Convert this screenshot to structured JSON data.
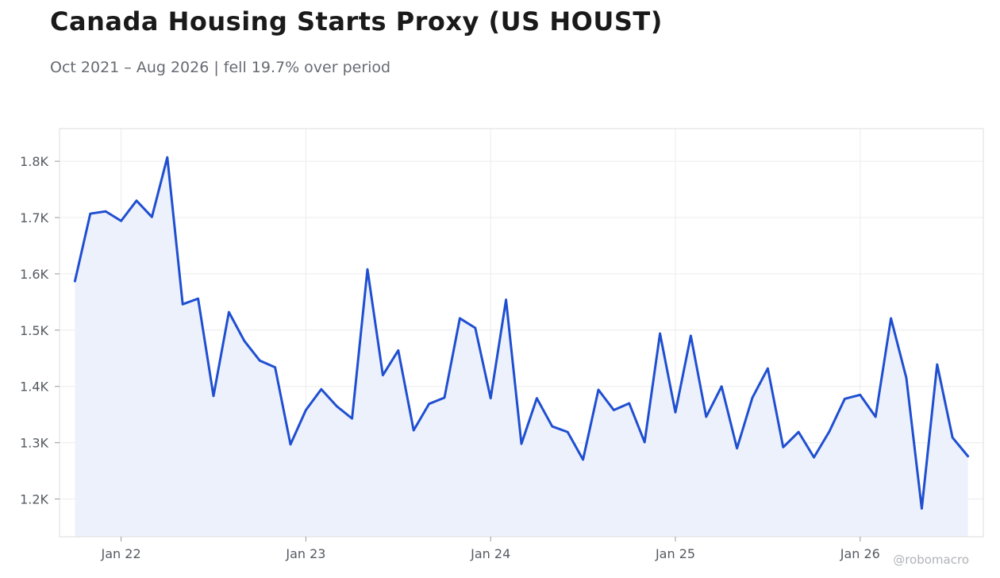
{
  "header": {
    "title": "Canada Housing Starts Proxy (US HOUST)",
    "subtitle": "Oct 2021 – Aug 2026 | fell 19.7% over period"
  },
  "watermark": "@robomacro",
  "colors": {
    "line": "#1f4fd1",
    "fill": "#edf1fb",
    "grid": "#ececec",
    "frame": "#dddddd"
  },
  "chart_data": {
    "type": "area",
    "x_start": "2021-10",
    "x_end": "2026-08",
    "xlim": [
      "2021-09",
      "2026-09"
    ],
    "ylim": [
      1133,
      1858
    ],
    "grid": true,
    "x_ticks": [
      {
        "date": "2022-01",
        "label": "Jan 22"
      },
      {
        "date": "2023-01",
        "label": "Jan 23"
      },
      {
        "date": "2024-01",
        "label": "Jan 24"
      },
      {
        "date": "2025-01",
        "label": "Jan 25"
      },
      {
        "date": "2026-01",
        "label": "Jan 26"
      }
    ],
    "y_ticks": [
      {
        "value": 1200,
        "label": "1.2K"
      },
      {
        "value": 1300,
        "label": "1.3K"
      },
      {
        "value": 1400,
        "label": "1.4K"
      },
      {
        "value": 1500,
        "label": "1.5K"
      },
      {
        "value": 1600,
        "label": "1.6K"
      },
      {
        "value": 1700,
        "label": "1.7K"
      },
      {
        "value": 1800,
        "label": "1.8K"
      }
    ],
    "values": [
      1587,
      1707,
      1711,
      1694,
      1730,
      1701,
      1807,
      1546,
      1556,
      1383,
      1532,
      1481,
      1446,
      1434,
      1297,
      1358,
      1395,
      1365,
      1343,
      1608,
      1420,
      1464,
      1322,
      1369,
      1380,
      1521,
      1504,
      1379,
      1554,
      1298,
      1379,
      1329,
      1319,
      1270,
      1394,
      1358,
      1370,
      1301,
      1494,
      1354,
      1490,
      1346,
      1400,
      1290,
      1380,
      1432,
      1292,
      1319,
      1274,
      1320,
      1378,
      1385,
      1346,
      1521,
      1415,
      1183,
      1439,
      1309,
      1276
    ]
  }
}
